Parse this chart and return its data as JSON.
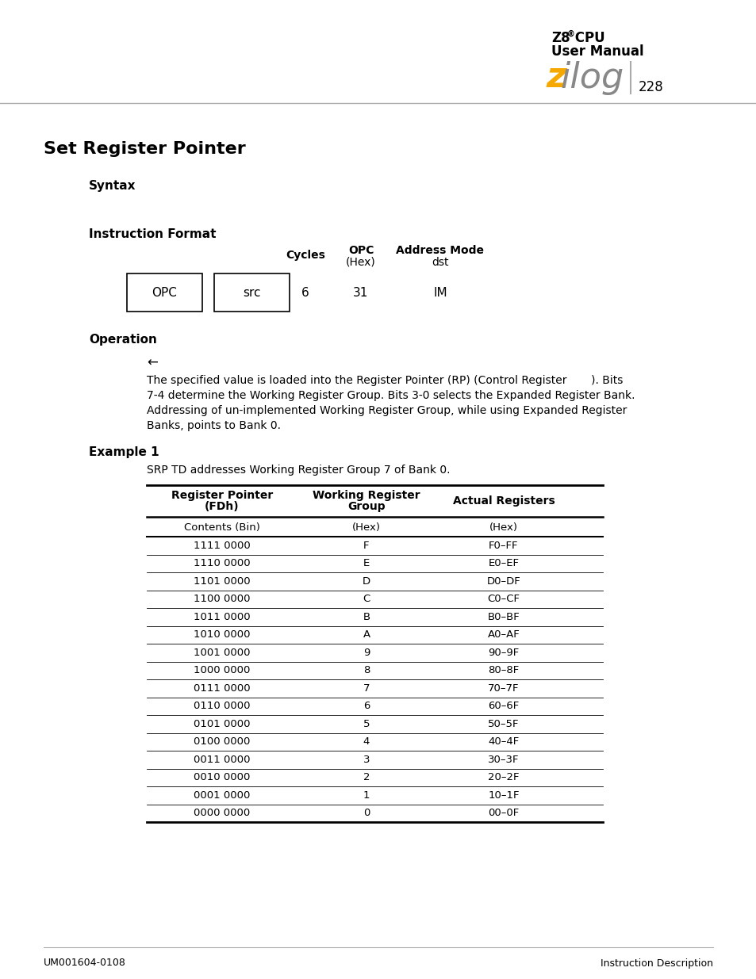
{
  "page_title": "Set Register Pointer",
  "header_line1_z8": "Z8",
  "header_line1_reg": "®",
  "header_line1_cpu": " CPU",
  "header_line2": "User Manual",
  "page_number": "228",
  "section_syntax": "Syntax",
  "section_instruction_format": "Instruction Format",
  "col_header_cycles": "Cycles",
  "col_header_opc": "OPC",
  "col_header_opc2": "(Hex)",
  "col_header_addr": "Address Mode",
  "col_header_dst": "dst",
  "box1_label": "OPC",
  "box2_label": "src",
  "row_cycles": "6",
  "row_opc": "31",
  "row_addr": "IM",
  "section_operation": "Operation",
  "arrow_symbol": "←",
  "op_line1": "The specified value is loaded into the Register Pointer (RP) (Control Register       ). Bits",
  "op_line2": "7-4 determine the Working Register Group. Bits 3-0 selects the Expanded Register Bank.",
  "op_line3": "Addressing of un-implemented Working Register Group, while using Expanded Register",
  "op_line4": "Banks, points to Bank 0.",
  "section_example": "Example 1",
  "example_text": "SRP TD addresses Working Register Group 7 of Bank 0.",
  "table_col1_header1": "Register Pointer",
  "table_col1_header2": "(FDh)",
  "table_col2_header1": "Working Register",
  "table_col2_header2": "Group",
  "table_col3_header": "Actual Registers",
  "table_subrow": [
    "Contents (Bin)",
    "(Hex)",
    "(Hex)"
  ],
  "table_data": [
    [
      "1111 0000",
      "F",
      "F0–FF"
    ],
    [
      "1110 0000",
      "E",
      "E0–EF"
    ],
    [
      "1101 0000",
      "D",
      "D0–DF"
    ],
    [
      "1100 0000",
      "C",
      "C0–CF"
    ],
    [
      "1011 0000",
      "B",
      "B0–BF"
    ],
    [
      "1010 0000",
      "A",
      "A0–AF"
    ],
    [
      "1001 0000",
      "9",
      "90–9F"
    ],
    [
      "1000 0000",
      "8",
      "80–8F"
    ],
    [
      "0111 0000",
      "7",
      "70–7F"
    ],
    [
      "0110 0000",
      "6",
      "60–6F"
    ],
    [
      "0101 0000",
      "5",
      "50–5F"
    ],
    [
      "0100 0000",
      "4",
      "40–4F"
    ],
    [
      "0011 0000",
      "3",
      "30–3F"
    ],
    [
      "0010 0000",
      "2",
      "20–2F"
    ],
    [
      "0001 0000",
      "1",
      "10–1F"
    ],
    [
      "0000 0000",
      "0",
      "00–0F"
    ]
  ],
  "footer_left": "UM001604-0108",
  "footer_right": "Instruction Description",
  "bg_color": "#ffffff",
  "text_color": "#000000",
  "zilog_z_color": "#f5a800",
  "zilog_ilog_color": "#888888",
  "line_color": "#aaaaaa"
}
